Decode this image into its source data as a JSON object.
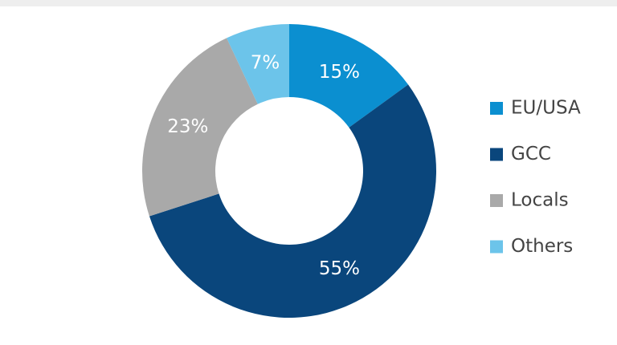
{
  "chart_data": {
    "type": "donut",
    "categories": [
      "EU/USA",
      "GCC",
      "Locals",
      "Others"
    ],
    "values": [
      15,
      55,
      23,
      7
    ],
    "value_labels": [
      "15%",
      "55%",
      "23%",
      "7%"
    ],
    "colors": [
      "#0b8fd0",
      "#0a467c",
      "#a9a9a9",
      "#6cc4ea"
    ],
    "legend": "right"
  }
}
